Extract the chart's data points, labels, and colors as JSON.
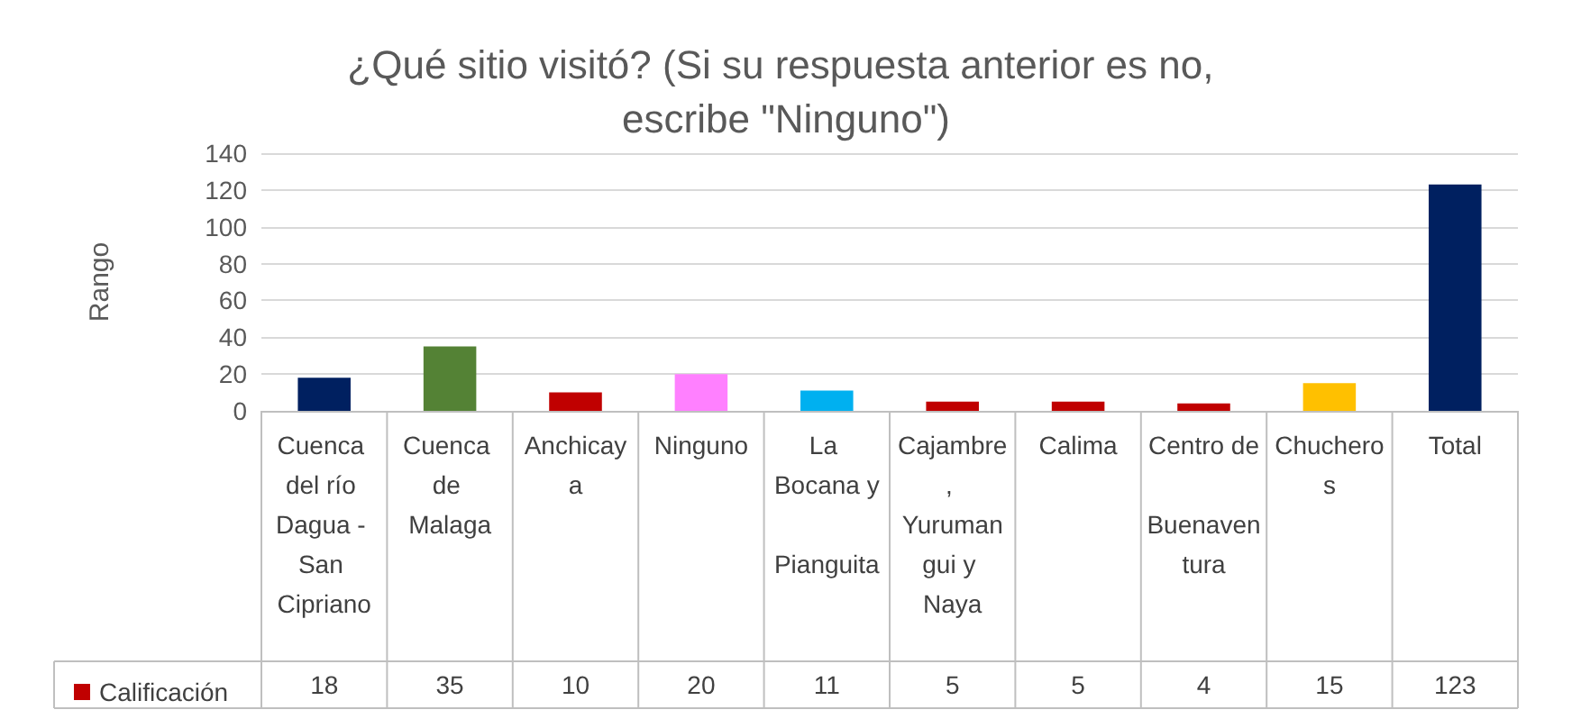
{
  "chart_data": {
    "type": "bar",
    "title": "¿Qué sitio visitó? (Si su respuesta anterior es no, escribe \"Ninguno\")",
    "ylabel": "Rango",
    "categories": [
      "Cuenca del río Dagua - San Cipriano",
      "Cuenca de Malaga",
      "Anchicaya",
      "Ninguno",
      "La Bocana y Pianguita",
      "Cajambre, Yurumangui y Naya",
      "Calima",
      "Centro de Buenaventura",
      "Chucheros",
      "Total"
    ],
    "series": [
      {
        "name": "Calificación",
        "color": "#c00000",
        "colors": [
          "#002060",
          "#548235",
          "#c00000",
          "#ff80ff",
          "#00b0f0",
          "#c00000",
          "#c00000",
          "#c00000",
          "#ffc000",
          "#002060"
        ],
        "values": [
          18,
          35,
          10,
          20,
          11,
          5,
          5,
          4,
          15,
          123
        ]
      }
    ],
    "ylim": [
      0,
      140
    ],
    "yticks": [
      0,
      20,
      40,
      60,
      80,
      100,
      120,
      140
    ],
    "grid": "y",
    "legend": "bottom left",
    "data_labels": true
  }
}
